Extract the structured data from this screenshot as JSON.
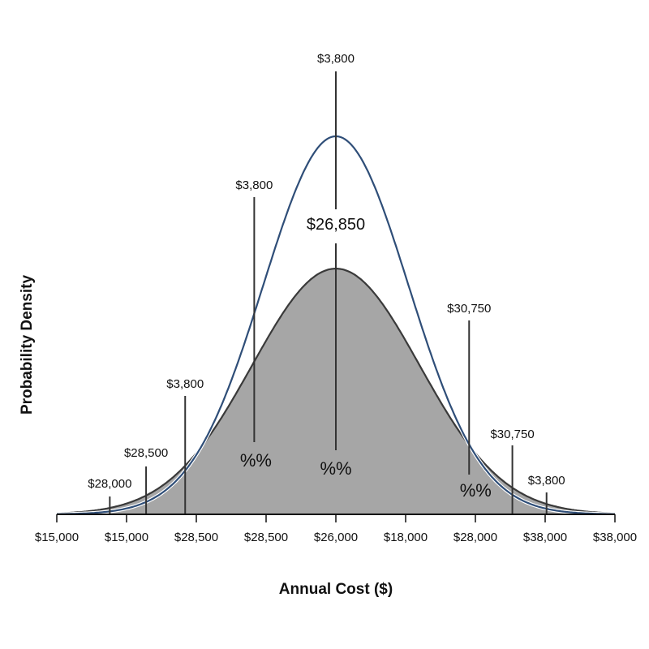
{
  "chart_data": {
    "type": "area",
    "xlabel": "Annual Cost ($)",
    "ylabel": "Probability Density",
    "x_tick_labels": [
      "$15,000",
      "$15,000",
      "$28,500",
      "$28,500",
      "$26,000",
      "$18,000",
      "$28,000",
      "$38,000",
      "$38,000"
    ],
    "series": [
      {
        "style": "filled",
        "color": "#a6a6a6",
        "line_color": "#3a3a3a",
        "center_tick": 4,
        "sd_ticks": 1.2,
        "relative_peak": 0.65
      },
      {
        "style": "line",
        "color": "#2f4e78",
        "center_tick": 4,
        "sd_ticks": 1.04,
        "relative_peak": 1.0
      }
    ],
    "center_label": "$26,850",
    "annotations": [
      {
        "label": "$3,800",
        "tick": 4.0,
        "percent": "%%"
      },
      {
        "label": "$3,800",
        "tick": 2.83,
        "percent": "%%"
      },
      {
        "label": "$3,800",
        "tick": 1.84
      },
      {
        "label": "$28,500",
        "tick": 1.28
      },
      {
        "label": "$28,000",
        "tick": 0.76
      },
      {
        "label": "$30,750",
        "tick": 5.91,
        "percent": "%%"
      },
      {
        "label": "$30,750",
        "tick": 6.53
      },
      {
        "label": "$3,800",
        "tick": 7.02
      }
    ],
    "grid": false
  }
}
